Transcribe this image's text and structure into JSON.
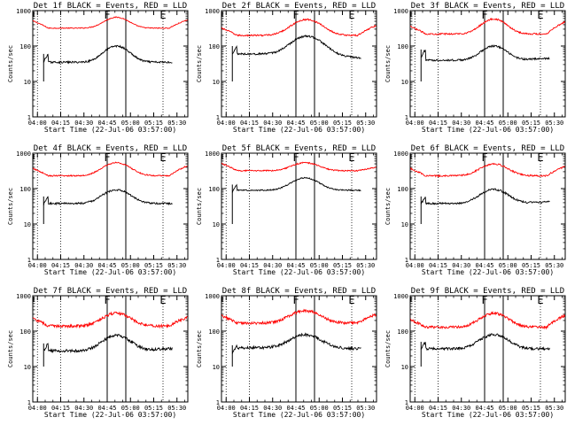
{
  "chart_data": [
    {
      "type": "line",
      "title": "Det 1f BLACK = Events, RED = LLD",
      "xlabel": "Start Time (22-Jul-06 03:57:00)",
      "ylabel": "Counts/sec",
      "x_ticks": [
        "04:00",
        "04:15",
        "04:30",
        "04:45",
        "05:00",
        "05:15",
        "05:30"
      ],
      "y_ticks": [
        "1",
        "10",
        "100",
        "1000"
      ],
      "xlim_min": [
        0,
        100
      ],
      "ylim": [
        1,
        1000
      ],
      "y_scale": "log",
      "grid": false,
      "markers": [
        {
          "label": "F",
          "x_min": 48
        },
        {
          "label": "E",
          "x_min": 84
        }
      ],
      "vlines_solid_min": [
        48,
        60
      ],
      "vlines_dotted_min": [
        3,
        18,
        84
      ],
      "series": [
        {
          "color": "#ff0000",
          "start_min": 0,
          "end_min": 100,
          "base": 320,
          "peak": 650,
          "peak_min": 54,
          "width_min": 10,
          "end": 550,
          "noise": 0.03
        },
        {
          "color": "#000000",
          "start_min": 7,
          "end_min": 90,
          "base": 35,
          "peak": 100,
          "peak_min": 54,
          "width_min": 10,
          "start_spike": 60,
          "end": 35,
          "noise": 0.06
        }
      ]
    },
    {
      "type": "line",
      "title": "Det 2f BLACK = Events, RED = LLD",
      "xlabel": "Start Time (22-Jul-06 03:57:00)",
      "ylabel": "Counts/sec",
      "x_ticks": [
        "04:00",
        "04:15",
        "04:30",
        "04:45",
        "05:00",
        "05:15",
        "05:30"
      ],
      "y_ticks": [
        "1",
        "10",
        "100",
        "1000"
      ],
      "xlim_min": [
        0,
        100
      ],
      "ylim": [
        1,
        1000
      ],
      "y_scale": "log",
      "grid": false,
      "markers": [
        {
          "label": "F",
          "x_min": 48
        },
        {
          "label": "E",
          "x_min": 84
        }
      ],
      "vlines_solid_min": [
        48,
        60
      ],
      "vlines_dotted_min": [
        3,
        18,
        84
      ],
      "series": [
        {
          "color": "#ff0000",
          "start_min": 0,
          "end_min": 100,
          "base": 200,
          "peak": 560,
          "peak_min": 55,
          "width_min": 12,
          "end": 380,
          "noise": 0.05
        },
        {
          "color": "#000000",
          "start_min": 7,
          "end_min": 90,
          "base": 60,
          "peak": 190,
          "peak_min": 55,
          "width_min": 12,
          "start_spike": 100,
          "end": 45,
          "noise": 0.06
        }
      ]
    },
    {
      "type": "line",
      "title": "Det 3f BLACK = Events, RED = LLD",
      "xlabel": "Start Time (22-Jul-06 03:57:00)",
      "ylabel": "Counts/sec",
      "x_ticks": [
        "04:00",
        "04:15",
        "04:30",
        "04:45",
        "05:00",
        "05:15",
        "05:30"
      ],
      "y_ticks": [
        "1",
        "10",
        "100",
        "1000"
      ],
      "xlim_min": [
        0,
        100
      ],
      "ylim": [
        1,
        1000
      ],
      "y_scale": "log",
      "grid": false,
      "markers": [
        {
          "label": "F",
          "x_min": 48
        },
        {
          "label": "E",
          "x_min": 84
        }
      ],
      "vlines_solid_min": [
        48,
        60
      ],
      "vlines_dotted_min": [
        3,
        18,
        84
      ],
      "series": [
        {
          "color": "#ff0000",
          "start_min": 0,
          "end_min": 100,
          "base": 220,
          "peak": 580,
          "peak_min": 54,
          "width_min": 10,
          "end": 480,
          "noise": 0.05
        },
        {
          "color": "#000000",
          "start_min": 7,
          "end_min": 90,
          "base": 40,
          "peak": 100,
          "peak_min": 54,
          "width_min": 10,
          "start_spike": 80,
          "end": 45,
          "noise": 0.06
        }
      ]
    },
    {
      "type": "line",
      "title": "Det 4f BLACK = Events, RED = LLD",
      "xlabel": "Start Time (22-Jul-06 03:57:00)",
      "ylabel": "Counts/sec",
      "x_ticks": [
        "04:00",
        "04:15",
        "04:30",
        "04:45",
        "05:00",
        "05:15",
        "05:30"
      ],
      "y_ticks": [
        "1",
        "10",
        "100",
        "1000"
      ],
      "xlim_min": [
        0,
        100
      ],
      "ylim": [
        1,
        1000
      ],
      "y_scale": "log",
      "grid": false,
      "markers": [
        {
          "label": "F",
          "x_min": 48
        },
        {
          "label": "E",
          "x_min": 84
        }
      ],
      "vlines_solid_min": [
        48,
        60
      ],
      "vlines_dotted_min": [
        3,
        18,
        84
      ],
      "series": [
        {
          "color": "#ff0000",
          "start_min": 0,
          "end_min": 100,
          "base": 230,
          "peak": 540,
          "peak_min": 54,
          "width_min": 11,
          "end": 440,
          "noise": 0.04
        },
        {
          "color": "#000000",
          "start_min": 7,
          "end_min": 90,
          "base": 38,
          "peak": 92,
          "peak_min": 54,
          "width_min": 11,
          "start_spike": 60,
          "end": 38,
          "noise": 0.06
        }
      ]
    },
    {
      "type": "line",
      "title": "Det 5f BLACK = Events, RED = LLD",
      "xlabel": "Start Time (22-Jul-06 03:57:00)",
      "ylabel": "Counts/sec",
      "x_ticks": [
        "04:00",
        "04:15",
        "04:30",
        "04:45",
        "05:00",
        "05:15",
        "05:30"
      ],
      "y_ticks": [
        "1",
        "10",
        "100",
        "1000"
      ],
      "xlim_min": [
        0,
        100
      ],
      "ylim": [
        1,
        1000
      ],
      "y_scale": "log",
      "grid": false,
      "markers": [
        {
          "label": "F",
          "x_min": 48
        },
        {
          "label": "E",
          "x_min": 84
        }
      ],
      "vlines_solid_min": [
        48,
        60
      ],
      "vlines_dotted_min": [
        3,
        18,
        84
      ],
      "series": [
        {
          "color": "#ff0000",
          "start_min": 0,
          "end_min": 100,
          "base": 320,
          "peak": 540,
          "peak_min": 54,
          "width_min": 11,
          "end": 400,
          "noise": 0.04
        },
        {
          "color": "#000000",
          "start_min": 7,
          "end_min": 90,
          "base": 90,
          "peak": 200,
          "peak_min": 54,
          "width_min": 11,
          "start_spike": 130,
          "end": 90,
          "noise": 0.04
        }
      ]
    },
    {
      "type": "line",
      "title": "Det 6f BLACK = Events, RED = LLD",
      "xlabel": "Start Time (22-Jul-06 03:57:00)",
      "ylabel": "Counts/sec",
      "x_ticks": [
        "04:00",
        "04:15",
        "04:30",
        "04:45",
        "05:00",
        "05:15",
        "05:30"
      ],
      "y_ticks": [
        "1",
        "10",
        "100",
        "1000"
      ],
      "xlim_min": [
        0,
        100
      ],
      "ylim": [
        1,
        1000
      ],
      "y_scale": "log",
      "grid": false,
      "markers": [
        {
          "label": "F",
          "x_min": 48
        },
        {
          "label": "E",
          "x_min": 84
        }
      ],
      "vlines_solid_min": [
        48,
        60
      ],
      "vlines_dotted_min": [
        3,
        18,
        84
      ],
      "series": [
        {
          "color": "#ff0000",
          "start_min": 0,
          "end_min": 100,
          "base": 230,
          "peak": 500,
          "peak_min": 54,
          "width_min": 11,
          "end": 420,
          "noise": 0.05
        },
        {
          "color": "#000000",
          "start_min": 7,
          "end_min": 90,
          "base": 38,
          "peak": 95,
          "peak_min": 54,
          "width_min": 11,
          "start_spike": 60,
          "end": 42,
          "noise": 0.06
        }
      ]
    },
    {
      "type": "line",
      "title": "Det 7f BLACK = Events, RED = LLD",
      "xlabel": "Start Time (22-Jul-06 03:57:00)",
      "ylabel": "Counts/sec",
      "x_ticks": [
        "04:00",
        "04:15",
        "04:30",
        "04:45",
        "05:00",
        "05:15",
        "05:30"
      ],
      "y_ticks": [
        "1",
        "10",
        "100",
        "1000"
      ],
      "xlim_min": [
        0,
        100
      ],
      "ylim": [
        1,
        1000
      ],
      "y_scale": "log",
      "grid": false,
      "markers": [
        {
          "label": "F",
          "x_min": 48
        },
        {
          "label": "E",
          "x_min": 84
        }
      ],
      "vlines_solid_min": [
        48,
        60
      ],
      "vlines_dotted_min": [
        3,
        18,
        84
      ],
      "series": [
        {
          "color": "#ff0000",
          "start_min": 0,
          "end_min": 100,
          "base": 140,
          "peak": 320,
          "peak_min": 54,
          "width_min": 11,
          "end": 250,
          "noise": 0.09
        },
        {
          "color": "#000000",
          "start_min": 7,
          "end_min": 90,
          "base": 28,
          "peak": 75,
          "peak_min": 54,
          "width_min": 11,
          "start_spike": 45,
          "end": 32,
          "noise": 0.09
        }
      ]
    },
    {
      "type": "line",
      "title": "Det 8f BLACK = Events, RED = LLD",
      "xlabel": "Start Time (22-Jul-06 03:57:00)",
      "ylabel": "Counts/sec",
      "x_ticks": [
        "04:00",
        "04:15",
        "04:30",
        "04:45",
        "05:00",
        "05:15",
        "05:30"
      ],
      "y_ticks": [
        "1",
        "10",
        "100",
        "1000"
      ],
      "xlim_min": [
        0,
        100
      ],
      "ylim": [
        1,
        1000
      ],
      "y_scale": "log",
      "grid": false,
      "markers": [
        {
          "label": "F",
          "x_min": 48
        },
        {
          "label": "E",
          "x_min": 84
        }
      ],
      "vlines_solid_min": [
        48,
        60
      ],
      "vlines_dotted_min": [
        3,
        18,
        84
      ],
      "series": [
        {
          "color": "#ff0000",
          "start_min": 0,
          "end_min": 100,
          "base": 170,
          "peak": 380,
          "peak_min": 54,
          "width_min": 12,
          "end": 300,
          "noise": 0.09
        },
        {
          "color": "#000000",
          "start_min": 7,
          "end_min": 90,
          "base": 34,
          "peak": 80,
          "peak_min": 54,
          "width_min": 12,
          "start_spike": 40,
          "end": 32,
          "noise": 0.09
        }
      ]
    },
    {
      "type": "line",
      "title": "Det 9f BLACK = Events, RED = LLD",
      "xlabel": "Start Time (22-Jul-06 03:57:00)",
      "ylabel": "Counts/sec",
      "x_ticks": [
        "04:00",
        "04:15",
        "04:30",
        "04:45",
        "05:00",
        "05:15",
        "05:30"
      ],
      "y_ticks": [
        "1",
        "10",
        "100",
        "1000"
      ],
      "xlim_min": [
        0,
        100
      ],
      "ylim": [
        1,
        1000
      ],
      "y_scale": "log",
      "grid": false,
      "markers": [
        {
          "label": "F",
          "x_min": 48
        },
        {
          "label": "E",
          "x_min": 84
        }
      ],
      "vlines_solid_min": [
        48,
        60
      ],
      "vlines_dotted_min": [
        3,
        18,
        84
      ],
      "series": [
        {
          "color": "#ff0000",
          "start_min": 0,
          "end_min": 100,
          "base": 130,
          "peak": 320,
          "peak_min": 54,
          "width_min": 11,
          "end": 280,
          "noise": 0.08
        },
        {
          "color": "#000000",
          "start_min": 7,
          "end_min": 90,
          "base": 32,
          "peak": 80,
          "peak_min": 54,
          "width_min": 11,
          "start_spike": 50,
          "end": 32,
          "noise": 0.08
        }
      ]
    }
  ]
}
